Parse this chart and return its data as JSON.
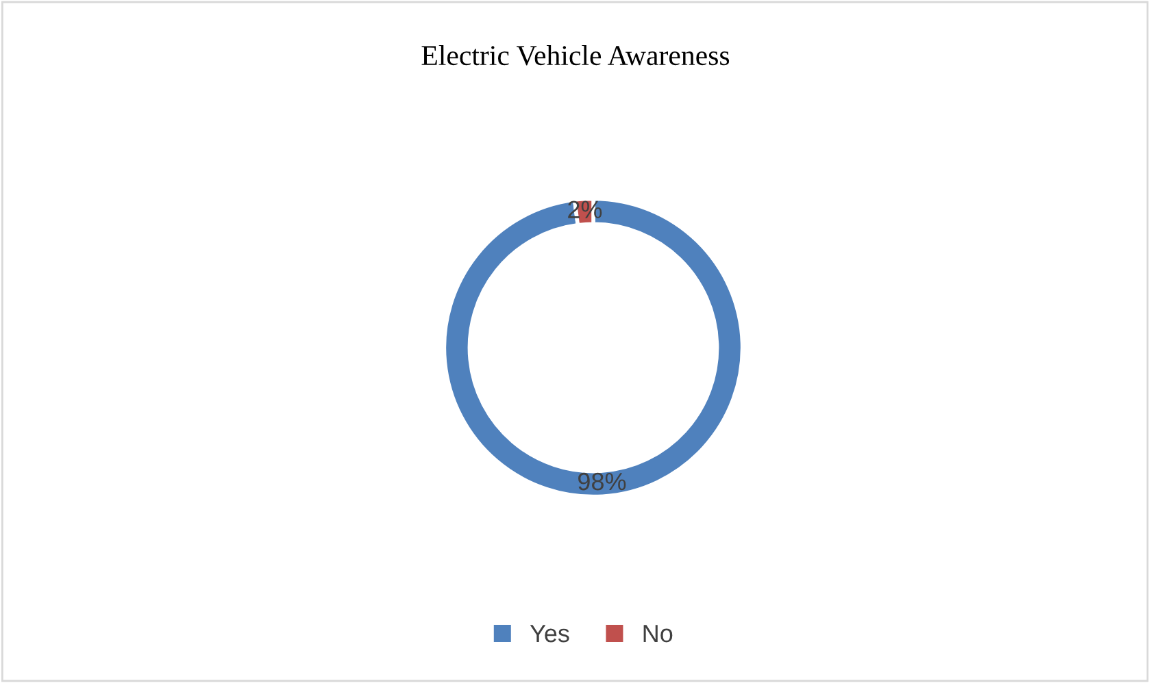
{
  "chart_data": {
    "type": "donut",
    "title": "Electric Vehicle Awareness",
    "categories": [
      "Yes",
      "No"
    ],
    "values": [
      98,
      2
    ],
    "colors": [
      "#4f81bd",
      "#c0504d"
    ],
    "value_labels": [
      "98%",
      "2%"
    ],
    "legend": "bottom"
  }
}
